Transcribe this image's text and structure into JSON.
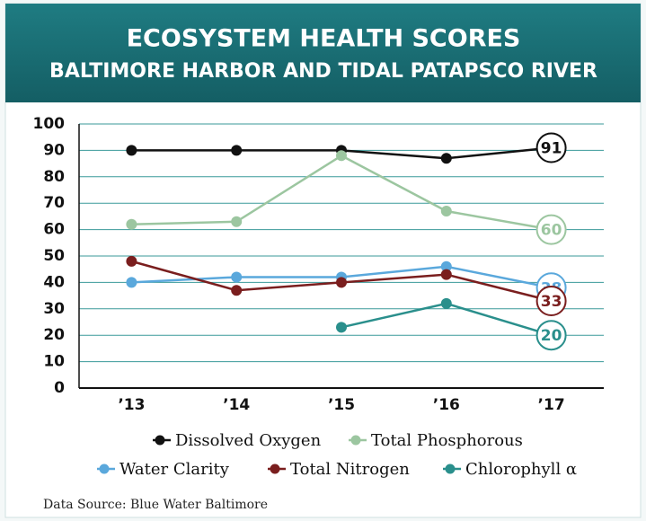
{
  "chart_data": {
    "type": "line",
    "title": "ECOSYSTEM HEALTH SCORES",
    "subtitle": "BALTIMORE HARBOR AND TIDAL PATAPSCO RIVER",
    "source": "Data Source: Blue Water Baltimore",
    "categories": [
      "’13",
      "’14",
      "’15",
      "’16",
      "’17"
    ],
    "series": [
      {
        "name": "Dissolved Oxygen",
        "color": "#111111",
        "values": [
          90,
          90,
          90,
          87,
          91
        ]
      },
      {
        "name": "Total Phosphorous",
        "color": "#9cc6a0",
        "values": [
          62,
          63,
          88,
          67,
          60
        ]
      },
      {
        "name": "Water Clarity",
        "color": "#5aa8dc",
        "values": [
          40,
          42,
          42,
          46,
          38
        ]
      },
      {
        "name": "Total Nitrogen",
        "color": "#7a1e1e",
        "values": [
          48,
          37,
          40,
          43,
          33
        ]
      },
      {
        "name": "Chlorophyll α",
        "color": "#2a8f8c",
        "values": [
          null,
          null,
          23,
          32,
          20
        ]
      }
    ],
    "ylim": [
      0,
      100
    ],
    "yticks": [
      0,
      10,
      20,
      30,
      40,
      50,
      60,
      70,
      80,
      90,
      100
    ],
    "grid": true
  }
}
